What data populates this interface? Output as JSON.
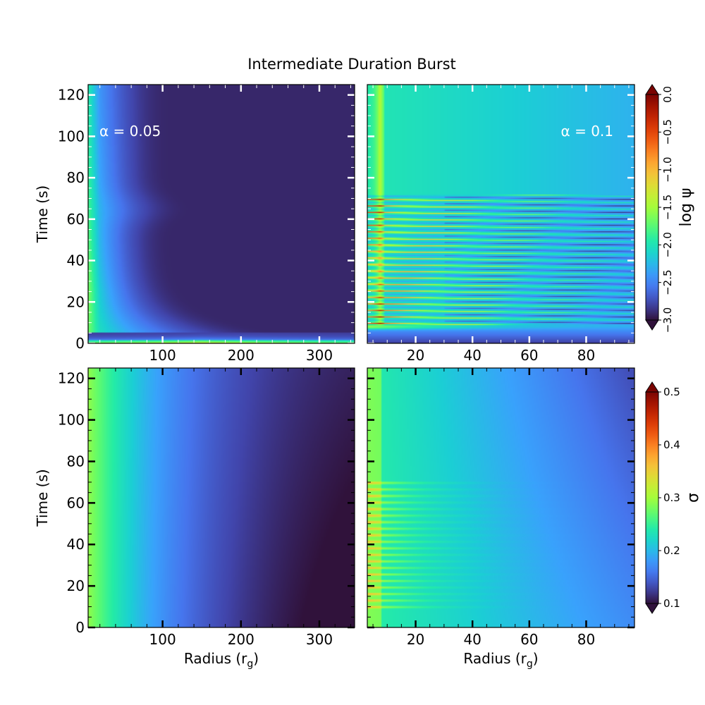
{
  "figure": {
    "title": "Intermediate Duration Burst",
    "ylabel": "Time (s)",
    "xlabel_main": "Radius (r",
    "xlabel_sub": "g",
    "xlabel_close": ")"
  },
  "colormap": {
    "name": "turbo",
    "stops": [
      "#30123b",
      "#4145ab",
      "#4675ed",
      "#39a2fc",
      "#1bcfd4",
      "#24eca6",
      "#61fc6c",
      "#a4fc3b",
      "#d1e834",
      "#f3c63a",
      "#fe9b2d",
      "#f36315",
      "#d93806",
      "#b11901",
      "#7a0402"
    ]
  },
  "colorbars": [
    {
      "label": "log ψ",
      "min": -3.0,
      "max": 0.0,
      "ticks": [
        -3.0,
        -2.5,
        -2.0,
        -1.5,
        -1.0,
        -0.5,
        0.0
      ],
      "tick_labels": [
        "−3.0",
        "−2.5",
        "−2.0",
        "−1.5",
        "−1.0",
        "−0.5",
        "0.0"
      ],
      "extend": "both"
    },
    {
      "label": "σ",
      "min": 0.1,
      "max": 0.5,
      "ticks": [
        0.1,
        0.2,
        0.3,
        0.4,
        0.5
      ],
      "tick_labels": [
        "0.1",
        "0.2",
        "0.3",
        "0.4",
        "0.5"
      ],
      "extend": "both"
    }
  ],
  "chart_data": [
    {
      "type": "heatmap",
      "panel": "top-left",
      "quantity": "log ψ",
      "annotation": "α = 0.05",
      "xlim": [
        5,
        345
      ],
      "ylim": [
        0,
        125
      ],
      "xticks": [
        100,
        200,
        300
      ],
      "xtick_labels": [
        "100",
        "200",
        "300"
      ],
      "yticks": [
        0,
        20,
        40,
        60,
        80,
        100,
        120
      ],
      "ytick_labels": [
        "0",
        "20",
        "40",
        "60",
        "80",
        "100",
        "120"
      ],
      "show_xlabel": false,
      "show_ylabel": true
    },
    {
      "type": "heatmap",
      "panel": "top-right",
      "quantity": "log ψ",
      "annotation": "α = 0.1",
      "xlim": [
        3,
        97
      ],
      "ylim": [
        0,
        125
      ],
      "xticks": [
        20,
        40,
        60,
        80
      ],
      "xtick_labels": [
        "20",
        "40",
        "60",
        "80"
      ],
      "yticks": [
        0,
        20,
        40,
        60,
        80,
        100,
        120
      ],
      "ytick_labels": [],
      "show_xlabel": false,
      "show_ylabel": false,
      "oscillation_period_end": 72
    },
    {
      "type": "heatmap",
      "panel": "bottom-left",
      "quantity": "σ",
      "annotation": "",
      "xlim": [
        5,
        345
      ],
      "ylim": [
        0,
        125
      ],
      "xticks": [
        100,
        200,
        300
      ],
      "xtick_labels": [
        "100",
        "200",
        "300"
      ],
      "yticks": [
        0,
        20,
        40,
        60,
        80,
        100,
        120
      ],
      "ytick_labels": [
        "0",
        "20",
        "40",
        "60",
        "80",
        "100",
        "120"
      ],
      "show_xlabel": true,
      "show_ylabel": true
    },
    {
      "type": "heatmap",
      "panel": "bottom-right",
      "quantity": "σ",
      "annotation": "",
      "xlim": [
        3,
        97
      ],
      "ylim": [
        0,
        125
      ],
      "xticks": [
        20,
        40,
        60,
        80
      ],
      "xtick_labels": [
        "20",
        "40",
        "60",
        "80"
      ],
      "yticks": [
        0,
        20,
        40,
        60,
        80,
        100,
        120
      ],
      "ytick_labels": [],
      "show_xlabel": true,
      "show_ylabel": false,
      "oscillation_period_end": 72
    }
  ]
}
